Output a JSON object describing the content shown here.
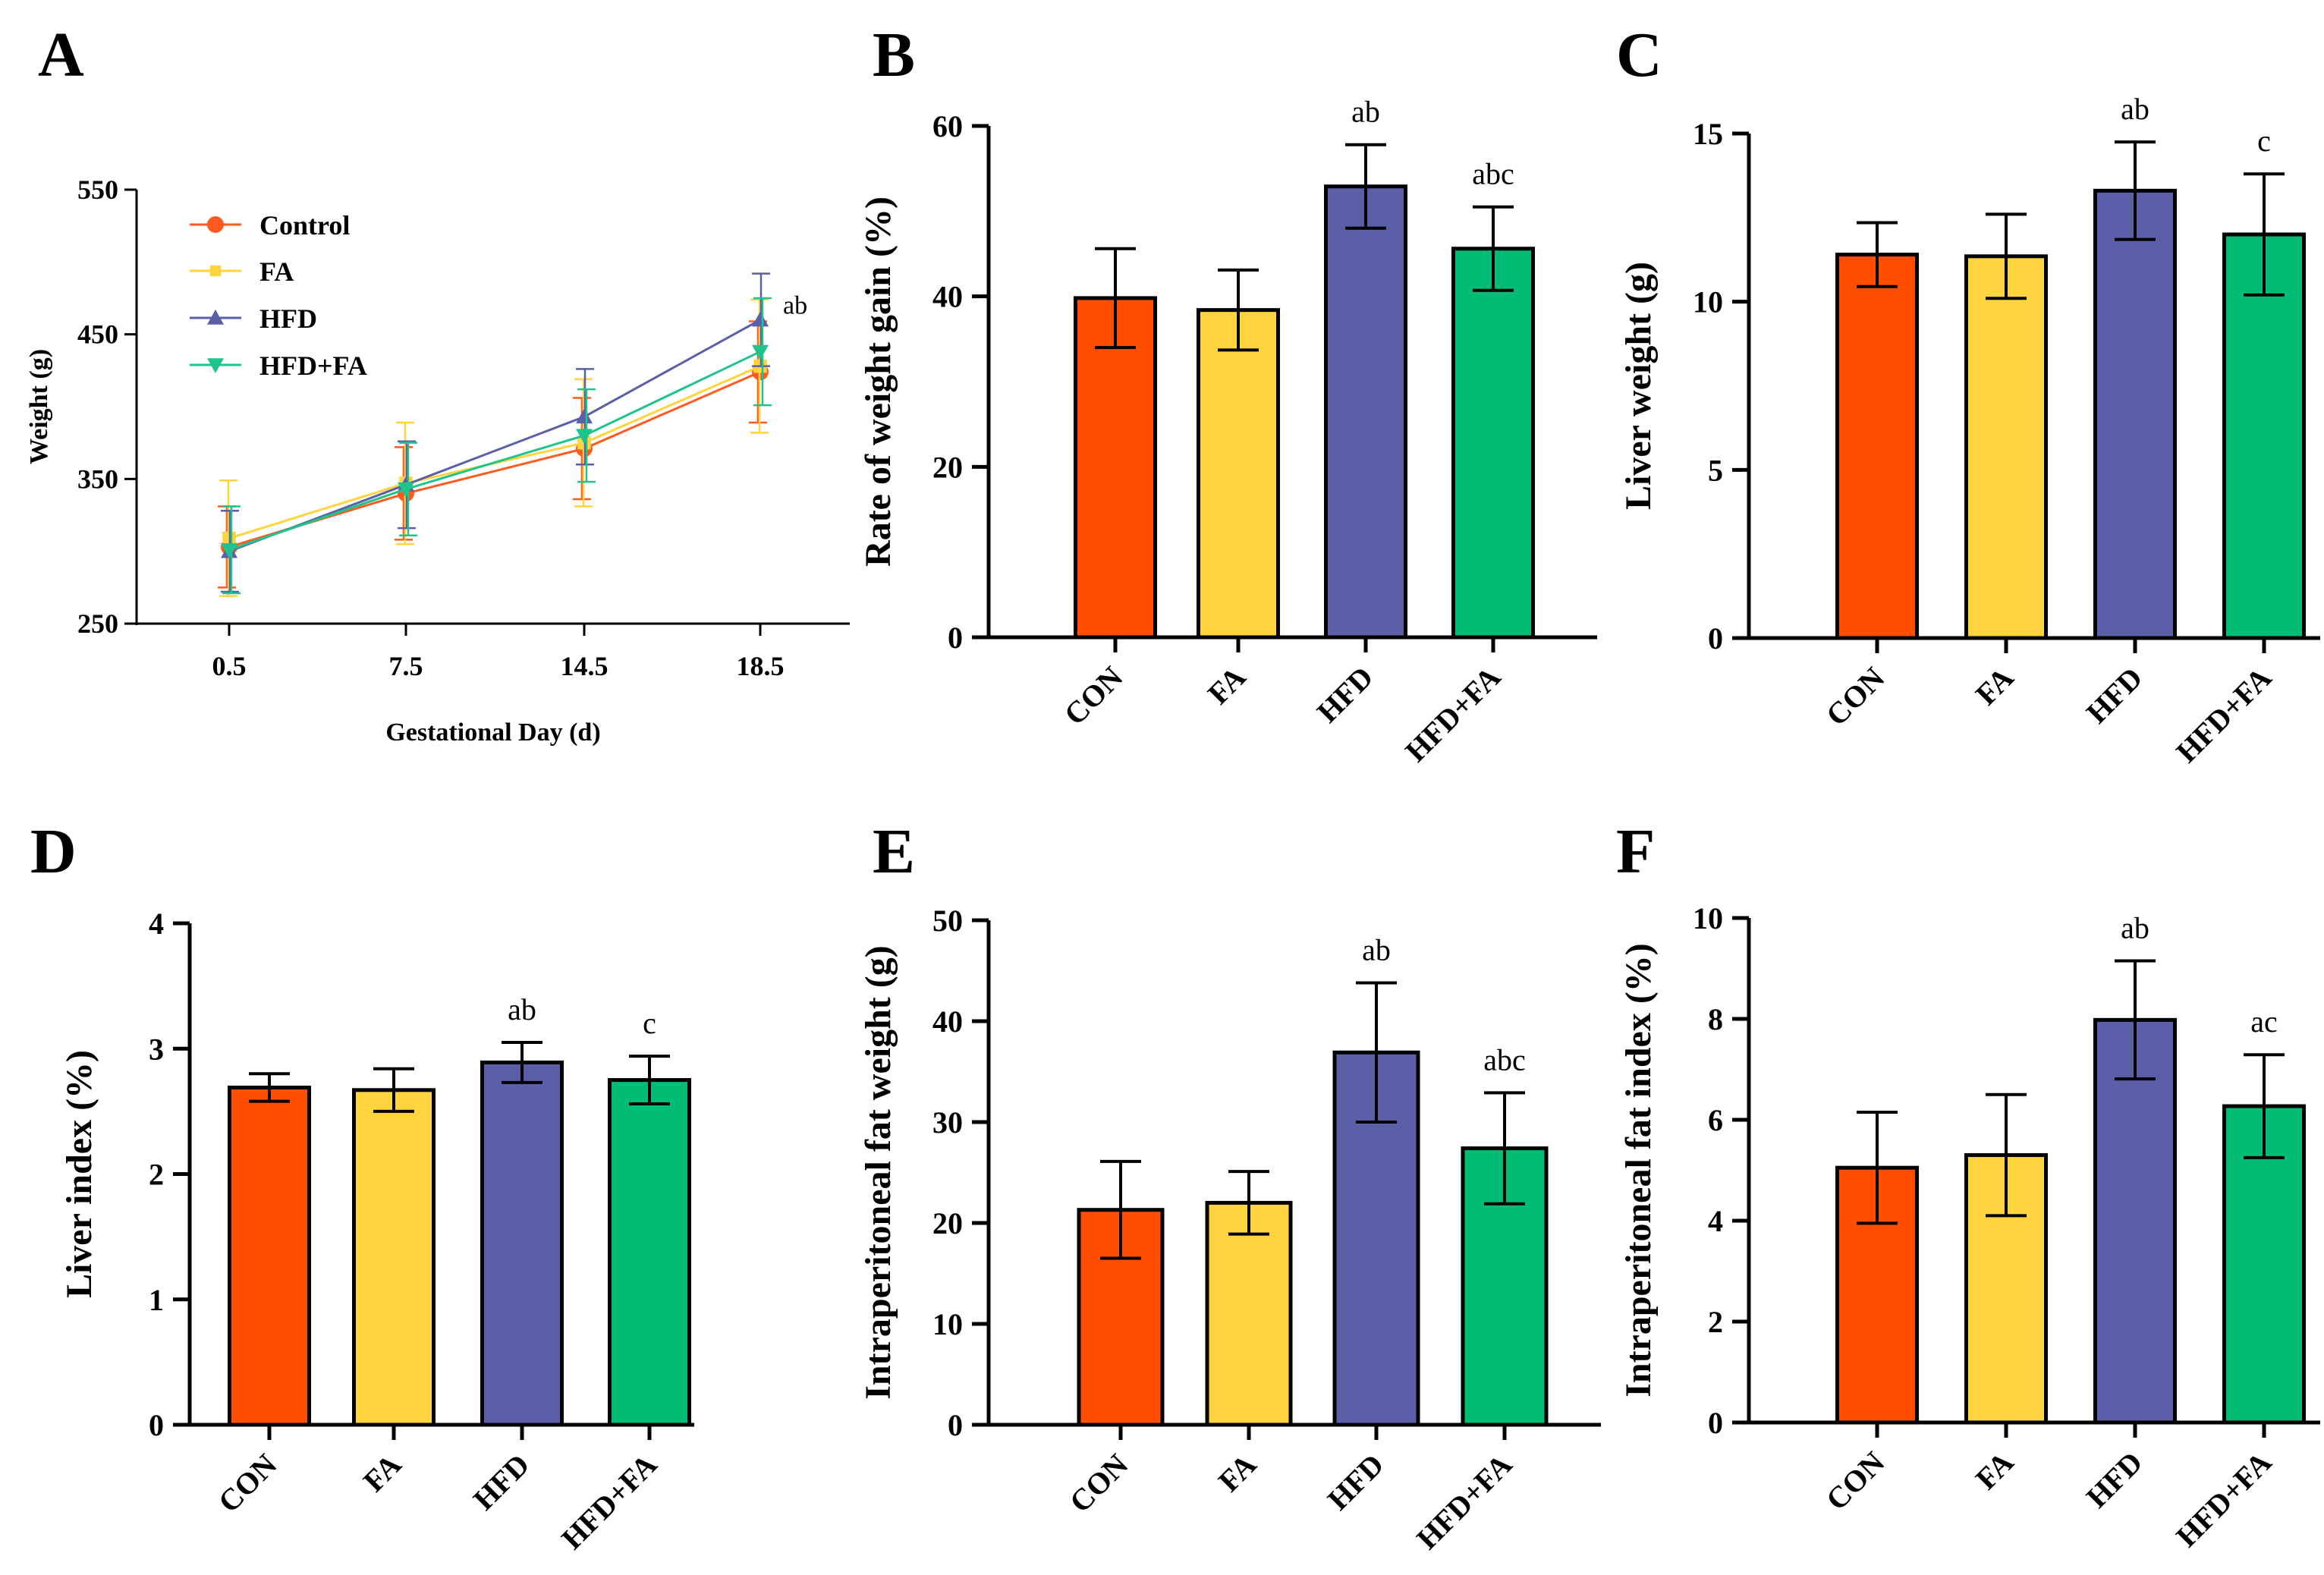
{
  "colors": {
    "CON": "#FF4E00",
    "FA": "#FFD43F",
    "HFD": "#5A5FA8",
    "HFD+FA": "#00BC74",
    "line_Control": "#FF5A1F",
    "line_FA": "#FFD43F",
    "line_HFD": "#5A5FA8",
    "line_HFD+FA": "#1FC48A"
  },
  "chart_data": [
    {
      "panel": "A",
      "type": "line",
      "title": "",
      "xlabel": "Gestational Day (d)",
      "ylabel": "Weight (g)",
      "x": [
        "0.5",
        "7.5",
        "14.5",
        "18.5"
      ],
      "ylim": [
        250,
        550
      ],
      "yticks": [
        "250",
        "350",
        "450",
        "550"
      ],
      "series": [
        {
          "name": "Control",
          "marker": "circle",
          "values": [
            303,
            340,
            371,
            424
          ],
          "errors": [
            28,
            32,
            35,
            35
          ]
        },
        {
          "name": "FA",
          "marker": "square",
          "values": [
            309,
            347,
            375,
            428
          ],
          "errors": [
            40,
            42,
            44,
            46
          ]
        },
        {
          "name": "HFD",
          "marker": "triangle-up",
          "values": [
            300,
            346,
            393,
            460
          ],
          "errors": [
            28,
            30,
            33,
            32
          ]
        },
        {
          "name": "HFD+FA",
          "marker": "triangle-down",
          "values": [
            301,
            343,
            380,
            438
          ],
          "errors": [
            30,
            32,
            32,
            37
          ]
        }
      ],
      "annotations": [
        {
          "series": "HFD",
          "index": 3,
          "text": "ab"
        }
      ]
    },
    {
      "panel": "B",
      "type": "bar",
      "title": "",
      "xlabel": "",
      "ylabel": "Rate of weight gain (%)",
      "categories": [
        "CON",
        "FA",
        "HFD",
        "HFD+FA"
      ],
      "values": [
        39.8,
        38.4,
        52.9,
        45.6
      ],
      "errors": [
        5.8,
        4.7,
        4.9,
        4.9
      ],
      "labels": [
        "",
        "",
        "ab",
        "abc"
      ],
      "ylim": [
        0,
        60
      ],
      "yticks": [
        "0",
        "20",
        "40",
        "60"
      ]
    },
    {
      "panel": "C",
      "type": "bar",
      "title": "",
      "xlabel": "",
      "ylabel": "Liver weight (g)",
      "categories": [
        "CON",
        "FA",
        "HFD",
        "HFD+FA"
      ],
      "values": [
        11.4,
        11.35,
        13.3,
        12.0
      ],
      "errors": [
        0.95,
        1.25,
        1.45,
        1.8
      ],
      "labels": [
        "",
        "",
        "ab",
        "c"
      ],
      "ylim": [
        0,
        15
      ],
      "yticks": [
        "0",
        "5",
        "10",
        "15"
      ]
    },
    {
      "panel": "D",
      "type": "bar",
      "title": "",
      "xlabel": "",
      "ylabel": "Liver index (%)",
      "categories": [
        "CON",
        "FA",
        "HFD",
        "HFD+FA"
      ],
      "values": [
        2.69,
        2.67,
        2.89,
        2.75
      ],
      "errors": [
        0.11,
        0.17,
        0.16,
        0.19
      ],
      "labels": [
        "",
        "",
        "ab",
        "c"
      ],
      "ylim": [
        0,
        4
      ],
      "yticks": [
        "0",
        "1",
        "2",
        "3",
        "4"
      ]
    },
    {
      "panel": "E",
      "type": "bar",
      "title": "",
      "xlabel": "",
      "ylabel": "Intraperitoneal fat weight (g)",
      "categories": [
        "CON",
        "FA",
        "HFD",
        "HFD+FA"
      ],
      "values": [
        21.3,
        22.0,
        36.9,
        27.4
      ],
      "errors": [
        4.8,
        3.1,
        6.9,
        5.5
      ],
      "labels": [
        "",
        "",
        "ab",
        "abc"
      ],
      "ylim": [
        0,
        50
      ],
      "yticks": [
        "0",
        "10",
        "20",
        "30",
        "40",
        "50"
      ]
    },
    {
      "panel": "F",
      "type": "bar",
      "title": "",
      "xlabel": "",
      "ylabel": "Intraperitoneal fat index (%)",
      "categories": [
        "CON",
        "FA",
        "HFD",
        "HFD+FA"
      ],
      "values": [
        5.05,
        5.3,
        7.98,
        6.27
      ],
      "errors": [
        1.1,
        1.2,
        1.17,
        1.02
      ],
      "labels": [
        "",
        "",
        "ab",
        "ac"
      ],
      "ylim": [
        0,
        10
      ],
      "yticks": [
        "0",
        "2",
        "4",
        "6",
        "8",
        "10"
      ]
    }
  ]
}
